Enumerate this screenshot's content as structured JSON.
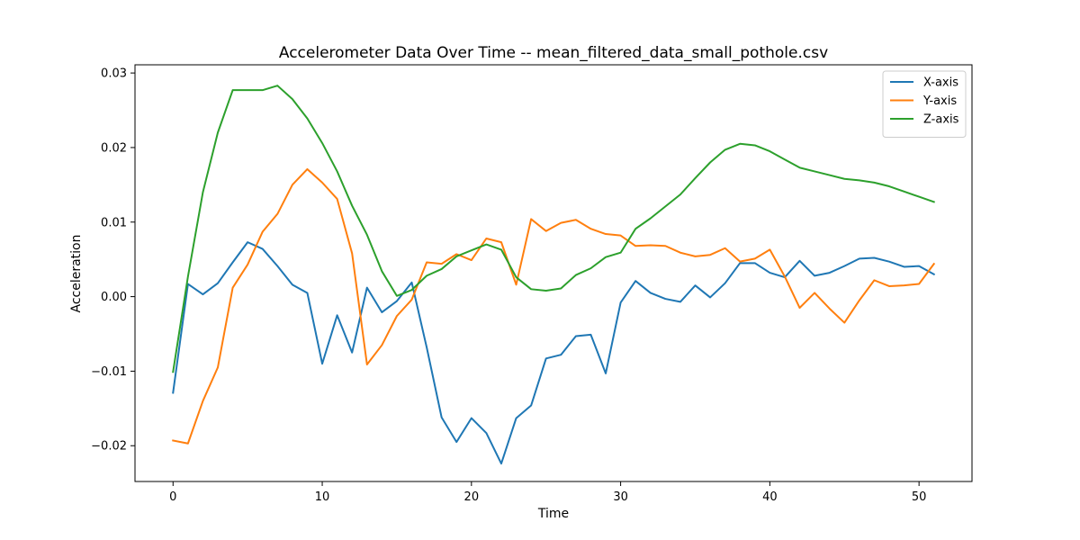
{
  "chart_data": {
    "type": "line",
    "title": "Accelerometer Data Over Time -- mean_filtered_data_small_pothole.csv",
    "xlabel": "Time",
    "ylabel": "Acceleration",
    "xlim": [
      -2.55,
      53.55
    ],
    "ylim": [
      -0.0248,
      0.0311
    ],
    "x_ticks": [
      0,
      10,
      20,
      30,
      40,
      50
    ],
    "x_tick_labels": [
      "0",
      "10",
      "20",
      "30",
      "40",
      "50"
    ],
    "y_ticks": [
      -0.02,
      -0.01,
      0.0,
      0.01,
      0.02,
      0.03
    ],
    "y_tick_labels": [
      "−0.02",
      "−0.01",
      "0.00",
      "0.01",
      "0.02",
      "0.03"
    ],
    "grid": false,
    "legend_position": "upper-right",
    "x": [
      0,
      1,
      2,
      3,
      4,
      5,
      6,
      7,
      8,
      9,
      10,
      11,
      12,
      13,
      14,
      15,
      16,
      17,
      18,
      19,
      20,
      21,
      22,
      23,
      24,
      25,
      26,
      27,
      28,
      29,
      30,
      31,
      32,
      33,
      34,
      35,
      36,
      37,
      38,
      39,
      40,
      41,
      42,
      43,
      44,
      45,
      46,
      47,
      48,
      49,
      50,
      51
    ],
    "series": [
      {
        "name": "X-axis",
        "color": "#1f77b4",
        "values": [
          -0.0129,
          0.0017,
          0.0003,
          0.0018,
          0.0046,
          0.0073,
          0.0064,
          0.0041,
          0.0016,
          0.0005,
          -0.009,
          -0.0025,
          -0.0075,
          0.0012,
          -0.0021,
          -0.0006,
          0.0019,
          -0.0068,
          -0.0162,
          -0.0195,
          -0.0163,
          -0.0183,
          -0.0224,
          -0.0163,
          -0.0146,
          -0.0083,
          -0.0078,
          -0.0053,
          -0.0051,
          -0.0103,
          -0.0008,
          0.0021,
          0.0005,
          -0.0003,
          -0.0007,
          0.0015,
          -0.0001,
          0.0018,
          0.0045,
          0.0045,
          0.0032,
          0.0026,
          0.0048,
          0.0028,
          0.0032,
          0.0041,
          0.0051,
          0.0052,
          0.0047,
          0.004,
          0.0041,
          0.003
        ]
      },
      {
        "name": "Y-axis",
        "color": "#ff7f0e",
        "values": [
          -0.0193,
          -0.0197,
          -0.014,
          -0.0095,
          0.0012,
          0.0043,
          0.0087,
          0.0111,
          0.015,
          0.0171,
          0.0153,
          0.0131,
          0.0058,
          -0.0091,
          -0.0065,
          -0.0026,
          -0.0004,
          0.0046,
          0.0044,
          0.0057,
          0.0049,
          0.0078,
          0.0073,
          0.0016,
          0.0104,
          0.0088,
          0.0099,
          0.0103,
          0.0091,
          0.0084,
          0.0082,
          0.0068,
          0.0069,
          0.0068,
          0.0059,
          0.0054,
          0.0056,
          0.0065,
          0.0047,
          0.0051,
          0.0063,
          0.0027,
          -0.0015,
          0.0005,
          -0.0016,
          -0.0035,
          -0.0005,
          0.0022,
          0.0014,
          0.0015,
          0.0017,
          0.0044
        ]
      },
      {
        "name": "Z-axis",
        "color": "#2ca02c",
        "values": [
          -0.0101,
          0.0027,
          0.014,
          0.022,
          0.0277,
          0.0277,
          0.0277,
          0.0283,
          0.0265,
          0.0239,
          0.0206,
          0.0168,
          0.0122,
          0.0083,
          0.0034,
          0.0001,
          0.0009,
          0.0028,
          0.0037,
          0.0054,
          0.0062,
          0.007,
          0.0063,
          0.0026,
          0.001,
          0.0008,
          0.0011,
          0.0029,
          0.0038,
          0.0053,
          0.0059,
          0.0091,
          0.0105,
          0.0121,
          0.0137,
          0.0159,
          0.018,
          0.0197,
          0.0205,
          0.0203,
          0.0195,
          0.0184,
          0.0173,
          0.0168,
          0.0163,
          0.0158,
          0.0156,
          0.0153,
          0.0148,
          0.0141,
          0.0134,
          0.0127
        ]
      }
    ]
  }
}
